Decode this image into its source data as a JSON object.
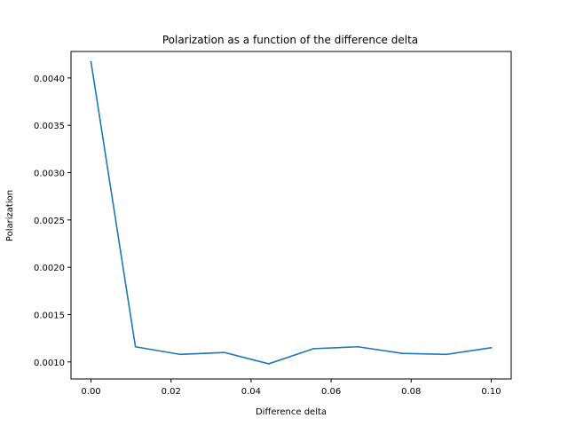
{
  "chart_data": {
    "type": "line",
    "title": "Polarization as a function of the difference delta",
    "xlabel": "Difference delta",
    "ylabel": "Polarization",
    "xlim": [
      -0.005,
      0.105
    ],
    "ylim": [
      0.00082,
      0.00428
    ],
    "xticks": [
      0.0,
      0.02,
      0.04,
      0.06,
      0.08,
      0.1
    ],
    "xtick_labels": [
      "0.00",
      "0.02",
      "0.04",
      "0.06",
      "0.08",
      "0.10"
    ],
    "yticks": [
      0.001,
      0.0015,
      0.002,
      0.0025,
      0.003,
      0.0035,
      0.004
    ],
    "ytick_labels": [
      "0.0010",
      "0.0015",
      "0.0020",
      "0.0025",
      "0.0030",
      "0.0035",
      "0.0040"
    ],
    "grid": false,
    "series": [
      {
        "color": "#1f77b4",
        "x": [
          0.0,
          0.0111,
          0.0222,
          0.0333,
          0.0444,
          0.0556,
          0.0667,
          0.0778,
          0.0889,
          0.1
        ],
        "y": [
          0.00417,
          0.00116,
          0.00108,
          0.0011,
          0.00098,
          0.00114,
          0.00116,
          0.00109,
          0.00108,
          0.00115
        ]
      }
    ]
  }
}
